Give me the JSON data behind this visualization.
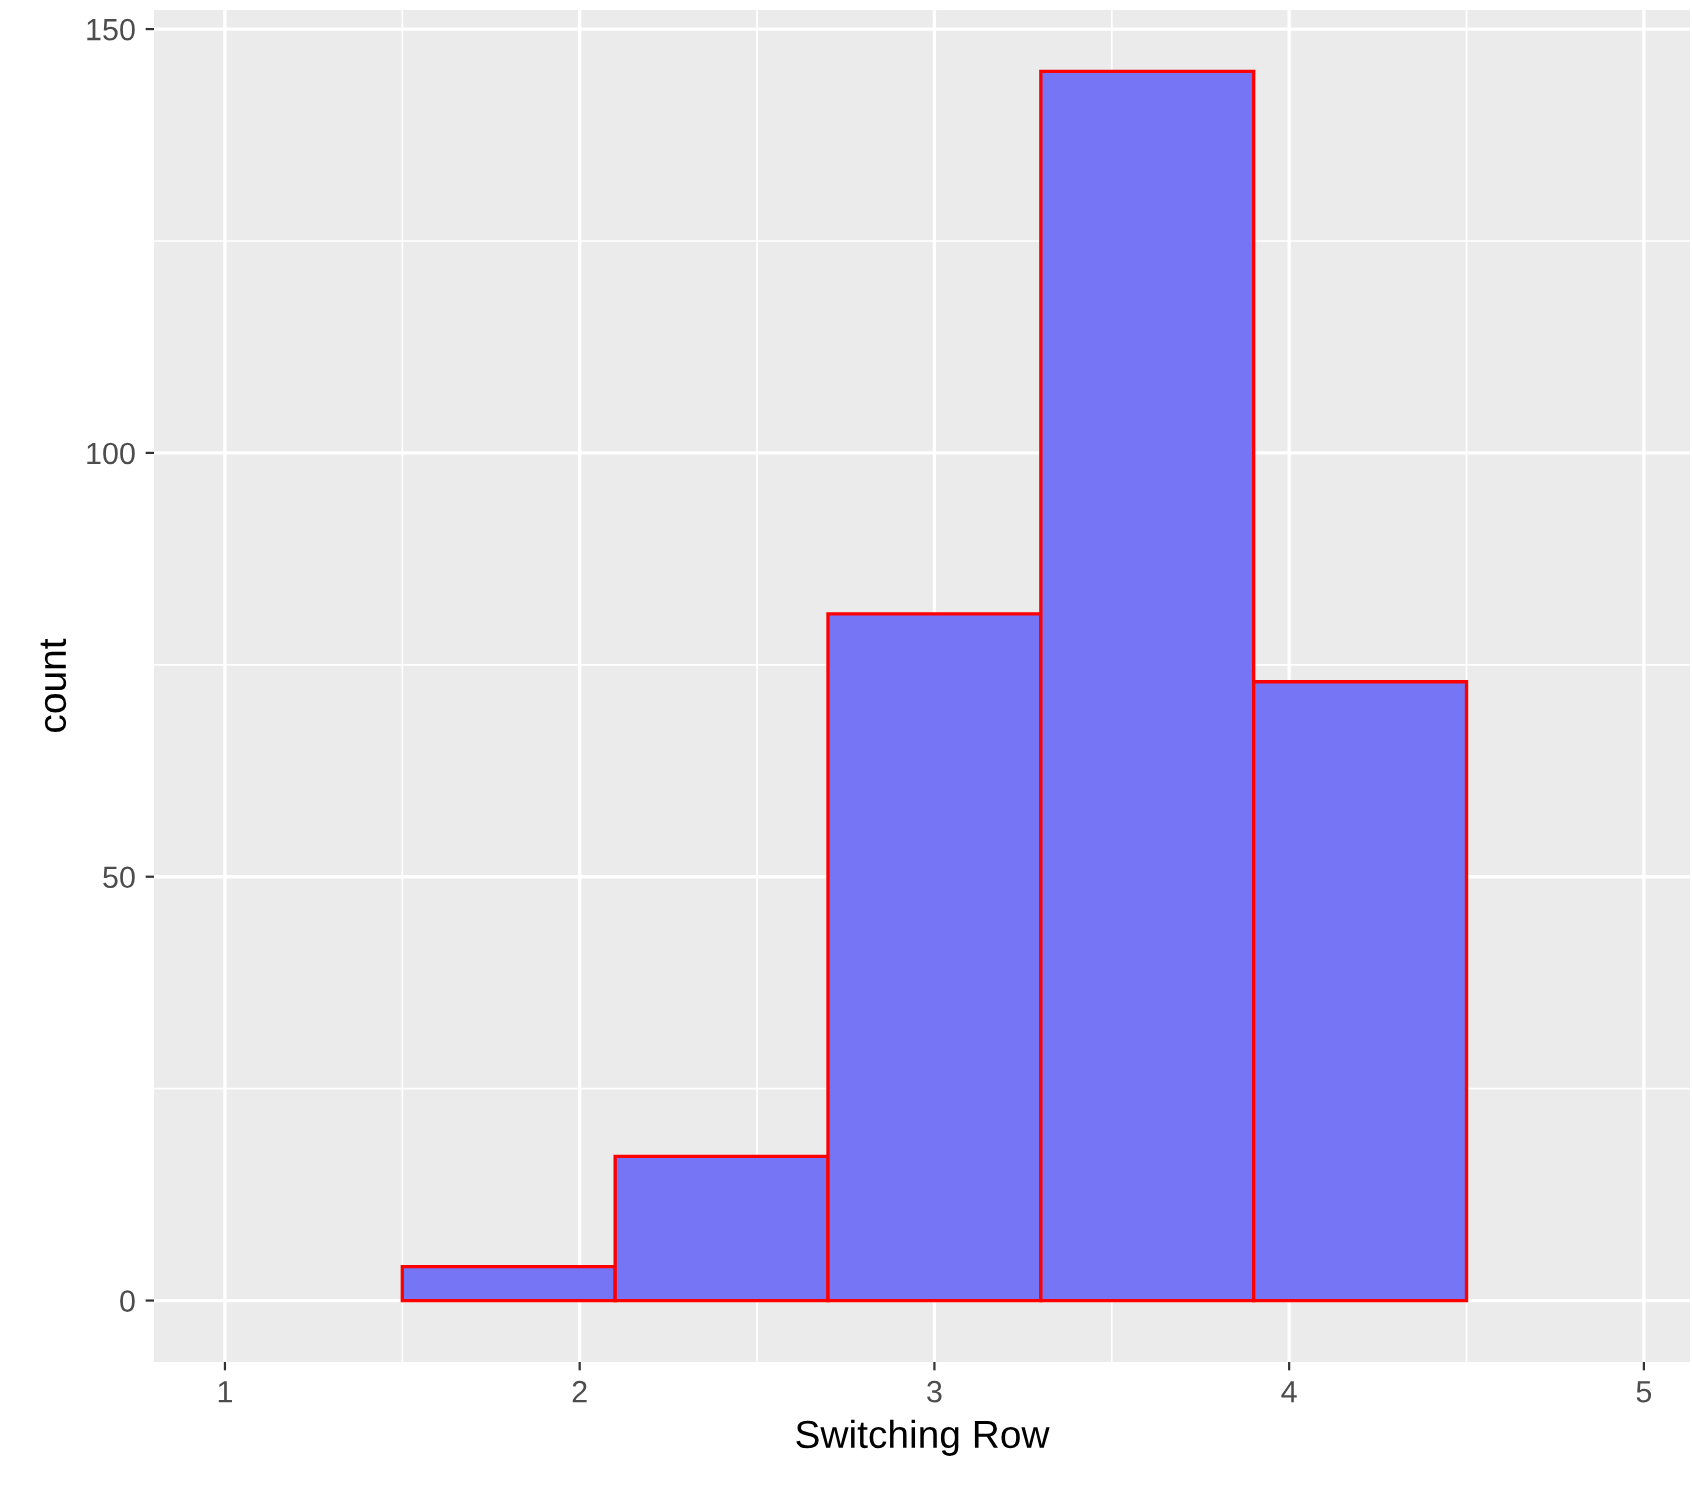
{
  "chart_data": {
    "type": "histogram",
    "xlabel": "Switching Row",
    "ylabel": "count",
    "bins": [
      1.5,
      2.1,
      2.7,
      3.3,
      3.9,
      4.5
    ],
    "values": [
      4,
      17,
      81,
      145,
      73
    ],
    "color": "#7575f5",
    "xlim": [
      0.8,
      5.13
    ],
    "xticks": [
      1,
      2,
      3,
      4,
      5
    ],
    "ylim": [
      -7.25,
      152.25
    ],
    "yticks": [
      0,
      50,
      100,
      150
    ],
    "grid": true
  }
}
